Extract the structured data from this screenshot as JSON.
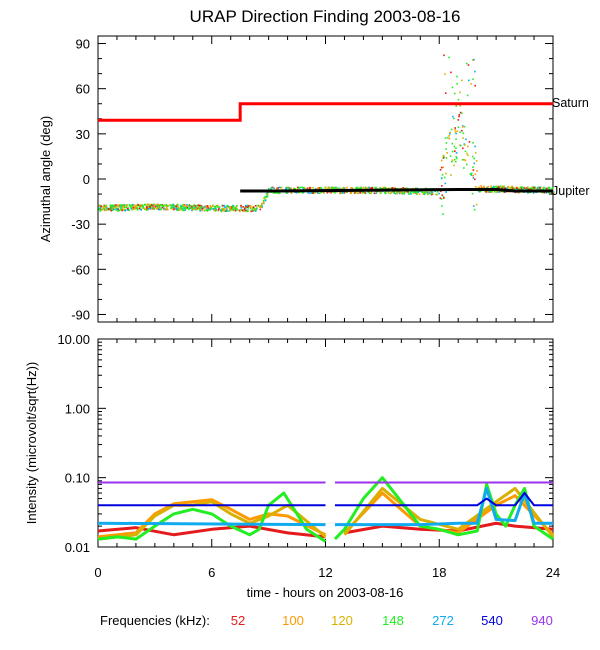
{
  "chart_data": [
    {
      "type": "scatter",
      "title": "URAP Direction Finding  2003-08-16",
      "xlabel": "",
      "ylabel": "Azimuthal angle (deg)",
      "xlim": [
        0,
        24
      ],
      "ylim": [
        -95,
        95
      ],
      "yticks": [
        90,
        60,
        30,
        0,
        -30,
        -60,
        -90
      ],
      "yticklabels": [
        "90",
        "60",
        "30",
        "0",
        "-30",
        "-60",
        "-90"
      ],
      "reference_lines": [
        {
          "name": "Saturn",
          "color": "#ff0000",
          "points": [
            [
              0,
              39
            ],
            [
              7.5,
              39
            ],
            [
              7.5,
              50
            ],
            [
              24,
              50
            ]
          ]
        },
        {
          "name": "Jupiter",
          "color": "#000000",
          "points": [
            [
              7.5,
              -8
            ],
            [
              9.5,
              -8
            ],
            [
              9.5,
              -8
            ],
            [
              19,
              -7
            ],
            [
              21,
              -7
            ],
            [
              22,
              -8
            ],
            [
              24,
              -8
            ]
          ]
        }
      ],
      "series": [
        {
          "name": "52",
          "color": "#e41a1c"
        },
        {
          "name": "100",
          "color": "#ff9900"
        },
        {
          "name": "120",
          "color": "#d9b000"
        },
        {
          "name": "148",
          "color": "#22ee22"
        },
        {
          "name": "272",
          "color": "#11aaee"
        },
        {
          "name": "540",
          "color": "#0000dd"
        },
        {
          "name": "940",
          "color": "#9933ee"
        }
      ],
      "approx_angle_trend": {
        "x": [
          0,
          3,
          6,
          8.5,
          9,
          12,
          15,
          18,
          18.5,
          19,
          20,
          24
        ],
        "y": [
          -19,
          -18,
          -19,
          -19,
          -7,
          -7,
          -7,
          -8,
          20,
          35,
          -6,
          -7
        ]
      }
    },
    {
      "type": "line",
      "title": "",
      "xlabel": "time - hours on 2003-08-16",
      "ylabel": "Intensity (microvolt/sqrt(Hz))",
      "yscale": "log",
      "xlim": [
        0,
        24
      ],
      "ylim": [
        0.01,
        10
      ],
      "xticks": [
        0,
        6,
        12,
        18,
        24
      ],
      "xticklabels": [
        "0",
        "6",
        "12",
        "18",
        "24"
      ],
      "yticks": [
        10,
        1,
        0.1,
        0.01
      ],
      "yticklabels": [
        "10.00",
        "1.00",
        "0.10",
        "0.01"
      ],
      "data_gap": [
        12,
        12.5
      ],
      "series": [
        {
          "name": "52",
          "color": "#e41a1c",
          "x": [
            0,
            2,
            4,
            6,
            8,
            10,
            12,
            13,
            15,
            17,
            19,
            21,
            22,
            24
          ],
          "y": [
            0.017,
            0.019,
            0.015,
            0.018,
            0.02,
            0.016,
            0.014,
            0.016,
            0.02,
            0.018,
            0.017,
            0.022,
            0.02,
            0.018
          ]
        },
        {
          "name": "100",
          "color": "#ff9900",
          "x": [
            0,
            2,
            3,
            4,
            5,
            6,
            7,
            8,
            9,
            10,
            12,
            13,
            15,
            17,
            19,
            21,
            22,
            24
          ],
          "y": [
            0.014,
            0.016,
            0.03,
            0.042,
            0.045,
            0.048,
            0.035,
            0.025,
            0.03,
            0.028,
            0.015,
            0.016,
            0.06,
            0.02,
            0.016,
            0.04,
            0.055,
            0.015
          ]
        },
        {
          "name": "120",
          "color": "#d9b000",
          "x": [
            0,
            2,
            3,
            4,
            5,
            6,
            7,
            8,
            9,
            10,
            12,
            13,
            15,
            17,
            19,
            21,
            22,
            24
          ],
          "y": [
            0.013,
            0.015,
            0.028,
            0.04,
            0.04,
            0.045,
            0.03,
            0.022,
            0.028,
            0.04,
            0.014,
            0.015,
            0.07,
            0.025,
            0.018,
            0.045,
            0.07,
            0.014
          ]
        },
        {
          "name": "148",
          "color": "#22ee22",
          "x": [
            0,
            1,
            2,
            3,
            4,
            5,
            6,
            7,
            8,
            8.5,
            9,
            9.8,
            10.5,
            11,
            12,
            12.5,
            13,
            14,
            15,
            16,
            17,
            18,
            19,
            20,
            20.5,
            21,
            21.5,
            22,
            22.5,
            23,
            24
          ],
          "y": [
            0.013,
            0.014,
            0.013,
            0.02,
            0.03,
            0.035,
            0.03,
            0.02,
            0.015,
            0.018,
            0.04,
            0.06,
            0.03,
            0.018,
            0.012,
            0.013,
            0.018,
            0.05,
            0.1,
            0.045,
            0.02,
            0.018,
            0.015,
            0.017,
            0.08,
            0.03,
            0.02,
            0.04,
            0.07,
            0.02,
            0.013
          ]
        },
        {
          "name": "272",
          "color": "#11aaee",
          "x": [
            0,
            12,
            12.5,
            17,
            19,
            20,
            20.5,
            21,
            22,
            22.5,
            23,
            24
          ],
          "y": [
            0.022,
            0.021,
            0.021,
            0.021,
            0.022,
            0.022,
            0.07,
            0.025,
            0.024,
            0.06,
            0.022,
            0.022
          ]
        },
        {
          "name": "540",
          "color": "#0000dd",
          "x": [
            0,
            12,
            12.5,
            20,
            20.5,
            21,
            22,
            22.5,
            23,
            24
          ],
          "y": [
            0.04,
            0.04,
            0.04,
            0.04,
            0.05,
            0.04,
            0.04,
            0.06,
            0.04,
            0.04
          ]
        },
        {
          "name": "940",
          "color": "#9933ee",
          "x": [
            0,
            12,
            12.5,
            24
          ],
          "y": [
            0.085,
            0.085,
            0.085,
            0.085
          ]
        }
      ]
    }
  ],
  "side_labels": {
    "saturn": "Saturn",
    "jupiter": "Jupiter"
  },
  "legend": {
    "label": "Frequencies (kHz):",
    "items": [
      {
        "text": "52",
        "color": "#e41a1c"
      },
      {
        "text": "100",
        "color": "#ff9900"
      },
      {
        "text": "120",
        "color": "#d9b000"
      },
      {
        "text": "148",
        "color": "#22ee22"
      },
      {
        "text": "272",
        "color": "#11aaee"
      },
      {
        "text": "540",
        "color": "#0000dd"
      },
      {
        "text": "940",
        "color": "#9933ee"
      }
    ]
  }
}
